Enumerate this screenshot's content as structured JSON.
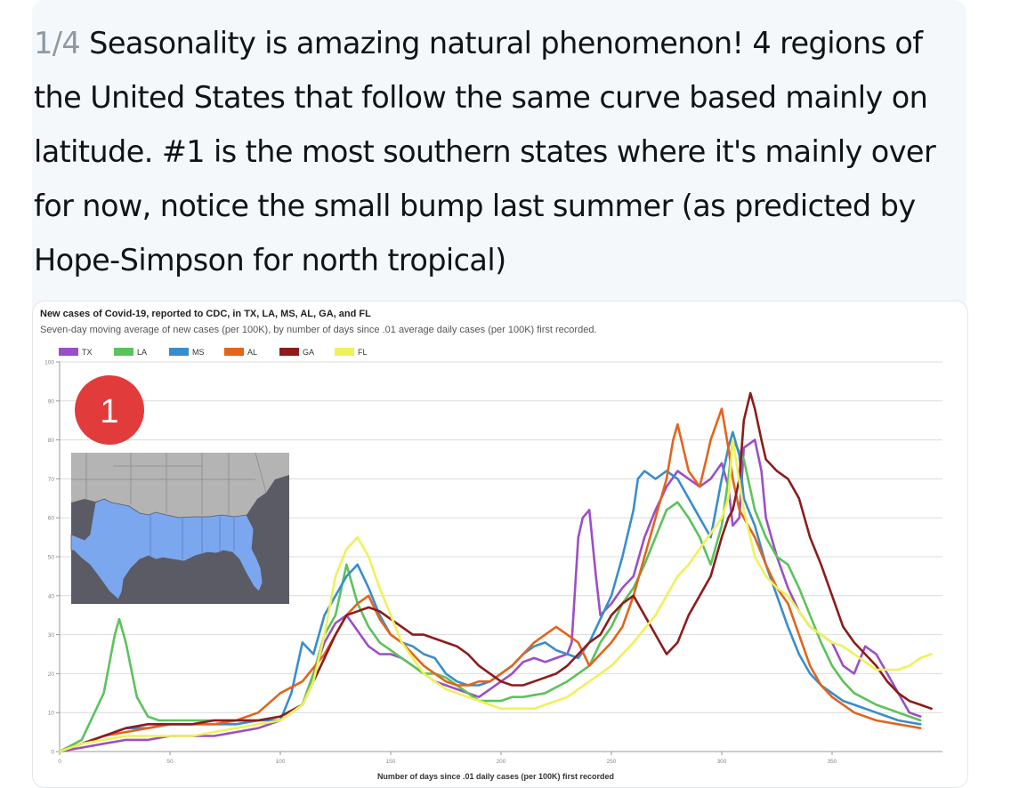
{
  "tweet": {
    "counter": "1/4",
    "text": " Seasonality is amazing natural phenomenon! 4 regions of the United States that follow the same curve based mainly on latitude. #1 is the most southern states where it's mainly over for now, notice the small bump last summer (as predicted by Hope-Simpson for north tropical)"
  },
  "inset": {
    "badge": "1",
    "map_colors": {
      "highlight": "#7aa7ee",
      "land": "#b4b4b4",
      "water": "#5b5b66"
    }
  },
  "colors": {
    "TX": "#9b4fc6",
    "LA": "#5cc25c",
    "MS": "#3a8dcc",
    "AL": "#e3641d",
    "GA": "#8c1c1c",
    "FL": "#eef25a"
  },
  "chart_data": {
    "type": "line",
    "title": "New cases of Covid-19, reported to CDC, in TX, LA, MS, AL, GA, and FL",
    "subtitle": "Seven-day moving average of new cases (per 100K), by number of days since .01 average daily cases (per 100K) first recorded.",
    "xlabel": "Number of days since .01 daily cases (per 100K) first recorded",
    "ylabel": "",
    "xlim": [
      0,
      400
    ],
    "ylim": [
      0,
      100
    ],
    "xticks": [
      0,
      50,
      100,
      150,
      200,
      250,
      300,
      350
    ],
    "yticks": [
      0,
      10,
      20,
      30,
      40,
      50,
      60,
      70,
      80,
      90,
      100
    ],
    "grid": true,
    "legend": "top-left",
    "series": [
      {
        "name": "TX",
        "x": [
          0,
          10,
          20,
          30,
          40,
          50,
          60,
          70,
          80,
          90,
          100,
          110,
          115,
          120,
          125,
          130,
          135,
          140,
          145,
          150,
          155,
          160,
          165,
          170,
          175,
          180,
          185,
          190,
          195,
          200,
          205,
          210,
          215,
          220,
          225,
          230,
          232,
          235,
          237,
          240,
          243,
          245,
          250,
          255,
          260,
          265,
          270,
          275,
          280,
          285,
          290,
          295,
          300,
          303,
          305,
          308,
          310,
          315,
          318,
          320,
          325,
          330,
          335,
          340,
          345,
          350,
          355,
          360,
          365,
          370,
          375,
          380,
          385,
          390
        ],
        "y": [
          0,
          1,
          2,
          3,
          3,
          4,
          4,
          4,
          5,
          6,
          8,
          12,
          20,
          28,
          33,
          35,
          31,
          27,
          25,
          25,
          24,
          22,
          20,
          18,
          17,
          16,
          15,
          14,
          16,
          18,
          20,
          23,
          24,
          23,
          24,
          25,
          28,
          55,
          60,
          62,
          45,
          35,
          38,
          42,
          45,
          55,
          62,
          68,
          72,
          70,
          68,
          70,
          74,
          68,
          58,
          60,
          78,
          80,
          72,
          60,
          50,
          42,
          36,
          32,
          30,
          28,
          22,
          20,
          27,
          25,
          20,
          15,
          10,
          9
        ]
      },
      {
        "name": "LA",
        "x": [
          0,
          10,
          20,
          25,
          27,
          30,
          35,
          40,
          45,
          50,
          60,
          70,
          80,
          90,
          100,
          110,
          115,
          120,
          125,
          130,
          135,
          140,
          145,
          150,
          155,
          160,
          165,
          170,
          175,
          180,
          185,
          190,
          195,
          200,
          205,
          210,
          220,
          230,
          240,
          245,
          250,
          255,
          260,
          265,
          270,
          275,
          280,
          285,
          290,
          295,
          300,
          303,
          305,
          310,
          315,
          320,
          325,
          330,
          335,
          340,
          345,
          350,
          355,
          360,
          370,
          380,
          390
        ],
        "y": [
          0,
          3,
          15,
          30,
          34,
          28,
          14,
          9,
          8,
          8,
          8,
          8,
          8,
          8,
          9,
          12,
          20,
          30,
          35,
          48,
          38,
          32,
          28,
          26,
          24,
          22,
          20,
          20,
          19,
          17,
          15,
          13,
          13,
          13,
          14,
          14,
          15,
          18,
          22,
          28,
          32,
          38,
          42,
          48,
          55,
          62,
          64,
          60,
          55,
          48,
          58,
          70,
          80,
          75,
          62,
          55,
          50,
          48,
          42,
          35,
          28,
          22,
          18,
          15,
          12,
          10,
          8
        ]
      },
      {
        "name": "MS",
        "x": [
          0,
          10,
          20,
          30,
          40,
          50,
          60,
          70,
          80,
          90,
          100,
          105,
          110,
          115,
          120,
          125,
          130,
          135,
          140,
          145,
          150,
          155,
          160,
          165,
          170,
          175,
          180,
          185,
          190,
          195,
          200,
          205,
          210,
          215,
          220,
          225,
          230,
          235,
          240,
          245,
          250,
          255,
          260,
          262,
          265,
          270,
          275,
          280,
          285,
          290,
          295,
          300,
          303,
          305,
          308,
          310,
          315,
          320,
          325,
          330,
          335,
          340,
          345,
          350,
          355,
          360,
          370,
          380,
          390
        ],
        "y": [
          0,
          2,
          4,
          6,
          6,
          7,
          7,
          7,
          7,
          8,
          8,
          15,
          28,
          25,
          35,
          40,
          45,
          48,
          42,
          35,
          30,
          28,
          27,
          25,
          24,
          20,
          18,
          17,
          17,
          18,
          20,
          22,
          25,
          27,
          28,
          26,
          25,
          24,
          28,
          34,
          40,
          50,
          62,
          70,
          72,
          70,
          72,
          70,
          65,
          60,
          55,
          70,
          78,
          82,
          76,
          65,
          58,
          48,
          40,
          32,
          25,
          20,
          17,
          15,
          13,
          12,
          10,
          8,
          7
        ]
      },
      {
        "name": "AL",
        "x": [
          0,
          10,
          20,
          30,
          40,
          50,
          60,
          70,
          80,
          90,
          100,
          110,
          120,
          125,
          130,
          135,
          140,
          145,
          150,
          155,
          160,
          165,
          170,
          175,
          180,
          185,
          190,
          195,
          200,
          205,
          210,
          215,
          220,
          225,
          230,
          235,
          240,
          245,
          250,
          255,
          260,
          265,
          270,
          275,
          278,
          280,
          285,
          290,
          293,
          295,
          300,
          303,
          305,
          308,
          310,
          315,
          320,
          325,
          330,
          335,
          340,
          345,
          350,
          355,
          360,
          370,
          380,
          390
        ],
        "y": [
          0,
          2,
          4,
          5,
          6,
          7,
          7,
          7,
          8,
          10,
          15,
          18,
          25,
          30,
          35,
          38,
          40,
          34,
          30,
          28,
          25,
          22,
          20,
          18,
          17,
          17,
          18,
          18,
          20,
          22,
          25,
          28,
          30,
          32,
          30,
          28,
          22,
          25,
          28,
          32,
          40,
          50,
          60,
          70,
          80,
          84,
          72,
          68,
          75,
          80,
          88,
          78,
          70,
          62,
          60,
          55,
          48,
          42,
          38,
          30,
          22,
          17,
          14,
          12,
          10,
          8,
          7,
          6
        ]
      },
      {
        "name": "GA",
        "x": [
          0,
          10,
          20,
          30,
          40,
          50,
          60,
          70,
          80,
          90,
          100,
          110,
          115,
          120,
          125,
          130,
          135,
          140,
          145,
          150,
          155,
          160,
          165,
          170,
          175,
          180,
          185,
          190,
          195,
          200,
          205,
          210,
          215,
          220,
          225,
          230,
          235,
          240,
          245,
          250,
          255,
          260,
          265,
          270,
          275,
          280,
          285,
          290,
          295,
          300,
          303,
          305,
          308,
          310,
          313,
          315,
          318,
          320,
          325,
          330,
          335,
          340,
          345,
          350,
          355,
          360,
          365,
          370,
          375,
          380,
          385,
          390,
          395
        ],
        "y": [
          0,
          2,
          4,
          6,
          7,
          7,
          7,
          8,
          8,
          8,
          9,
          12,
          18,
          24,
          30,
          35,
          36,
          37,
          36,
          34,
          32,
          30,
          30,
          29,
          28,
          27,
          25,
          22,
          20,
          18,
          17,
          17,
          18,
          19,
          20,
          22,
          25,
          28,
          30,
          35,
          38,
          40,
          35,
          30,
          25,
          28,
          35,
          40,
          45,
          55,
          60,
          62,
          70,
          85,
          92,
          88,
          80,
          75,
          72,
          70,
          65,
          55,
          48,
          40,
          32,
          28,
          25,
          22,
          18,
          15,
          13,
          12,
          11
        ]
      },
      {
        "name": "FL",
        "x": [
          0,
          10,
          20,
          30,
          40,
          50,
          60,
          70,
          80,
          90,
          100,
          110,
          115,
          120,
          125,
          130,
          135,
          140,
          145,
          150,
          155,
          160,
          165,
          170,
          175,
          180,
          185,
          190,
          195,
          200,
          205,
          210,
          215,
          220,
          225,
          230,
          240,
          250,
          260,
          270,
          280,
          285,
          290,
          295,
          300,
          303,
          305,
          310,
          315,
          320,
          325,
          330,
          335,
          340,
          345,
          350,
          355,
          360,
          365,
          370,
          375,
          380,
          385,
          390,
          395
        ],
        "y": [
          0,
          2,
          3,
          4,
          4,
          4,
          4,
          5,
          6,
          7,
          8,
          12,
          18,
          30,
          45,
          52,
          55,
          50,
          42,
          35,
          28,
          24,
          20,
          18,
          16,
          15,
          14,
          13,
          12,
          11,
          11,
          11,
          11,
          12,
          13,
          14,
          18,
          22,
          28,
          35,
          45,
          48,
          52,
          56,
          60,
          65,
          80,
          62,
          50,
          45,
          42,
          40,
          36,
          32,
          30,
          28,
          27,
          25,
          23,
          21,
          21,
          21,
          22,
          24,
          25
        ]
      }
    ]
  }
}
